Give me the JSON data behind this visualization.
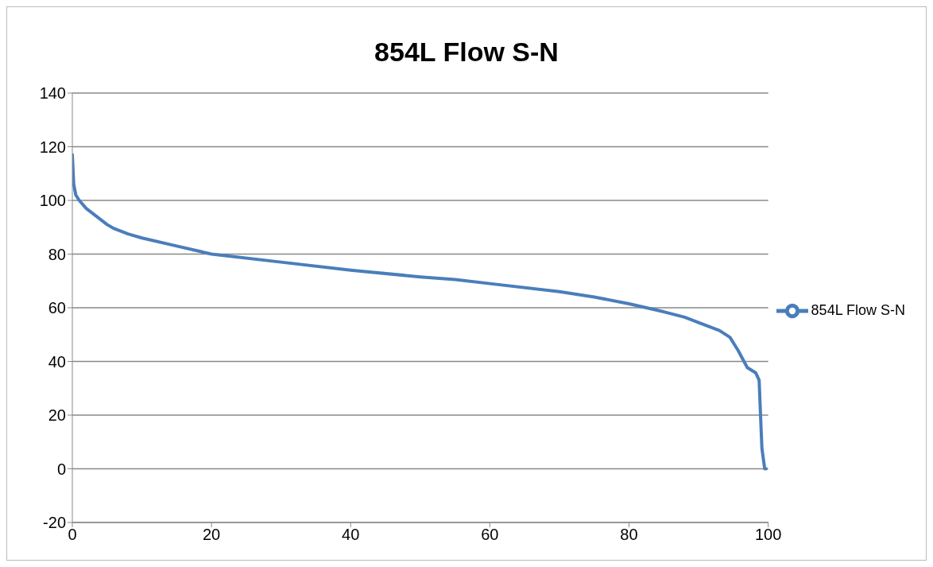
{
  "chart_data": {
    "type": "line",
    "title": "854L Flow S-N",
    "xlim": [
      0,
      100
    ],
    "xticks": [
      0,
      20,
      40,
      60,
      80,
      100
    ],
    "ylim": [
      -20,
      140
    ],
    "yticks": [
      -20,
      0,
      20,
      40,
      60,
      80,
      100,
      120,
      140
    ],
    "grid": "y",
    "legend": "right",
    "marker": "none",
    "line_style": "solid",
    "series": [
      {
        "name": "854L Flow S-N",
        "color": "#4a7ebb",
        "x": [
          0,
          0.2,
          0.5,
          1,
          2,
          3,
          4,
          5,
          6,
          8,
          10,
          15,
          20,
          30,
          40,
          50,
          55,
          60,
          70,
          75,
          80,
          85,
          88,
          90,
          93,
          94.5,
          95.7,
          96.4,
          97,
          98.2,
          98.7,
          98.9,
          99.1,
          99.5,
          99.7
        ],
        "values": [
          117,
          106,
          102,
          100,
          97,
          95,
          93,
          91,
          89.5,
          87.5,
          86,
          83,
          80,
          77,
          74,
          71.5,
          70.5,
          69,
          66,
          64,
          61.5,
          58.5,
          56.5,
          54.5,
          51.5,
          49,
          44,
          40.6,
          37.7,
          35.8,
          33,
          20,
          7.6,
          0,
          0
        ]
      }
    ]
  }
}
